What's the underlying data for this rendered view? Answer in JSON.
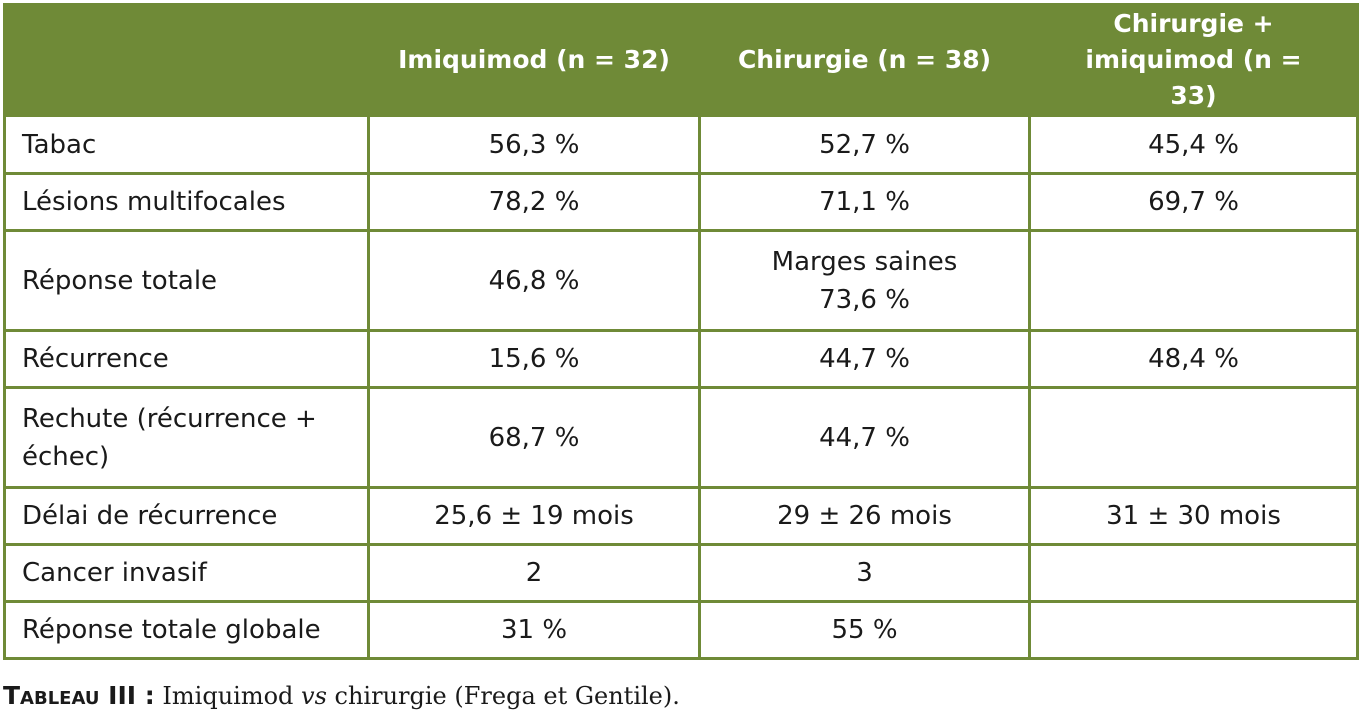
{
  "table": {
    "columns": [
      "",
      "Imiquimod (n = 32)",
      "Chirurgie (n = 38)",
      "Chirurgie + imiquimod (n = 33)"
    ],
    "rows": [
      {
        "label": "Tabac",
        "cells": [
          "56,3 %",
          "52,7 %",
          "45,4 %"
        ]
      },
      {
        "label": "Lésions multifocales",
        "cells": [
          "78,2 %",
          "71,1 %",
          "69,7 %"
        ]
      },
      {
        "label": "Réponse totale",
        "cells": [
          "46,8 %",
          "Marges saines 73,6 %",
          ""
        ]
      },
      {
        "label": "Récurrence",
        "cells": [
          "15,6 %",
          "44,7 %",
          "48,4 %"
        ]
      },
      {
        "label": "Rechute (récurrence + échec)",
        "cells": [
          "68,7 %",
          "44,7 %",
          ""
        ]
      },
      {
        "label": "Délai de récurrence",
        "cells": [
          "25,6 ± 19 mois",
          "29 ± 26 mois",
          "31 ± 30 mois"
        ]
      },
      {
        "label": "Cancer invasif",
        "cells": [
          "2",
          "3",
          ""
        ]
      },
      {
        "label": "Réponse totale globale",
        "cells": [
          "31 %",
          "55 %",
          ""
        ]
      }
    ]
  },
  "caption": {
    "label": "Tableau III :",
    "text_before": " Imiquimod ",
    "italic": "vs",
    "text_after": " chirurgie (Frega et Gentile)."
  },
  "colors": {
    "header_bg": "#6f8a37",
    "header_text": "#ffffff",
    "border": "#6f8a37"
  }
}
